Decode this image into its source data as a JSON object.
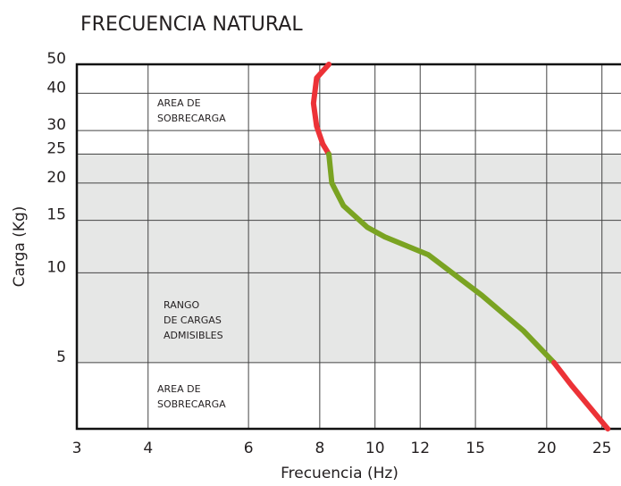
{
  "chart_data": {
    "type": "line",
    "title": "FRECUENCIA NATURAL",
    "x_label": "Frecuencia (Hz)",
    "y_label": "Carga (Kg)",
    "log_x": true,
    "log_y": true,
    "grid": true,
    "xlim": [
      3,
      27
    ],
    "ylim": [
      3,
      50
    ],
    "xticks": [
      3,
      4,
      6,
      8,
      10,
      12,
      15,
      20,
      25
    ],
    "yticks": [
      5,
      10,
      15,
      20,
      25,
      30,
      40,
      50
    ],
    "band": {
      "range": [
        5,
        25
      ],
      "color": "#e6e7e6"
    },
    "annotations": [
      [
        "AREA DE",
        "SOBRECARGA"
      ],
      [
        "RANGO",
        "DE CARGAS",
        "ADMISIBLES"
      ],
      [
        "AREA DE",
        "SOBRECARGA"
      ]
    ],
    "series": [
      {
        "color": "#ec3237",
        "x": [
          8.3,
          7.9,
          7.8,
          7.9,
          8.1,
          8.3
        ],
        "values": [
          50,
          45,
          37,
          31,
          27,
          25
        ]
      },
      {
        "color": "#7aa322",
        "x": [
          8.3,
          8.4,
          8.8,
          9.7,
          10.4,
          12.4,
          15.4,
          18.2,
          20.6
        ],
        "values": [
          25,
          20,
          16.8,
          14.2,
          13.2,
          11.5,
          8.4,
          6.4,
          5.0
        ]
      },
      {
        "color": "#ec3237",
        "x": [
          20.6,
          22.1,
          25.6
        ],
        "values": [
          5.0,
          4.2,
          3.0
        ]
      }
    ]
  }
}
